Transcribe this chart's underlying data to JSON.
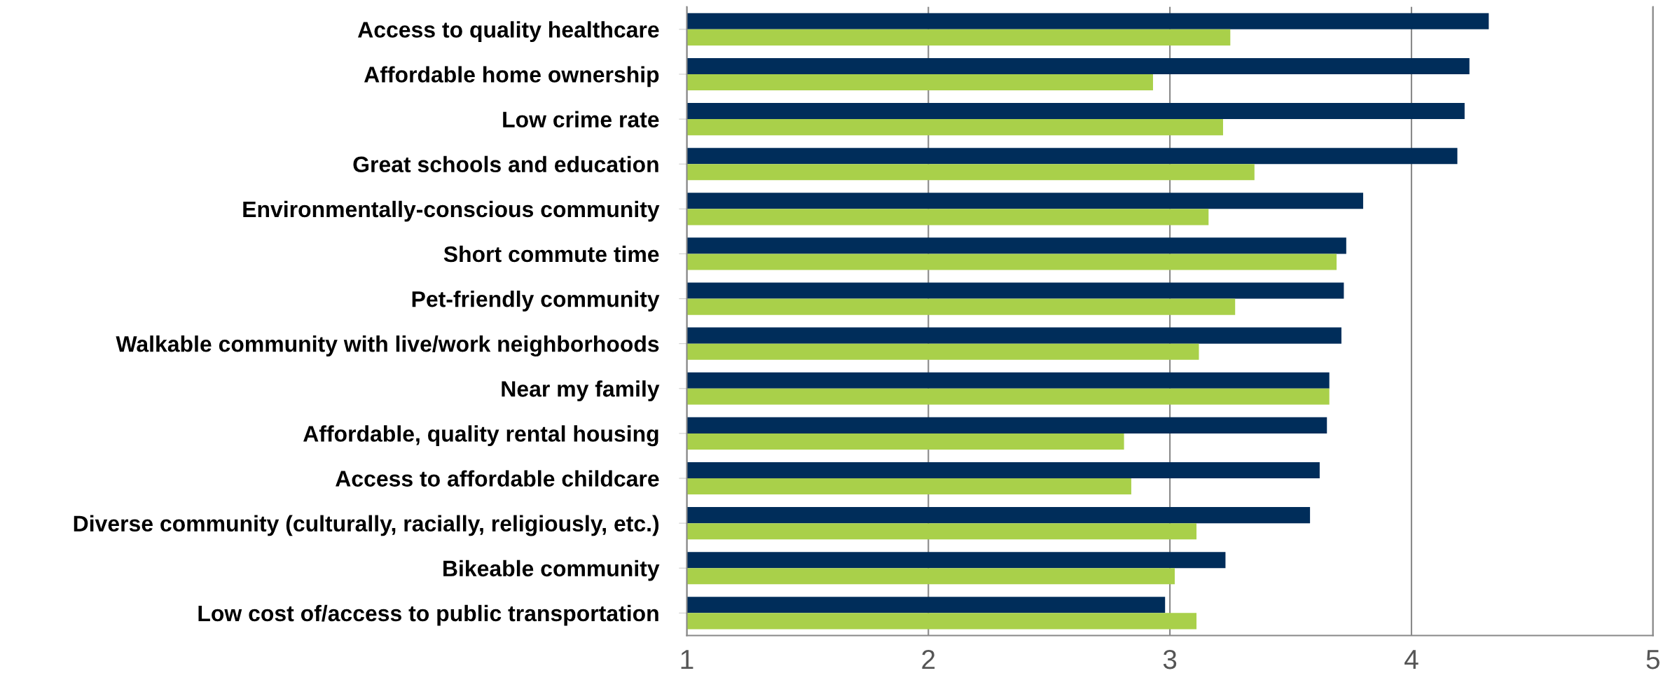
{
  "chart_data": {
    "type": "bar",
    "orientation": "horizontal",
    "categories": [
      "Access to quality healthcare",
      "Affordable home ownership",
      "Low crime rate",
      "Great schools and education",
      "Environmentally-conscious community",
      "Short commute time",
      "Pet-friendly community",
      "Walkable community with live/work neighborhoods",
      "Near my family",
      "Affordable, quality rental housing",
      "Access to affordable childcare",
      "Diverse community (culturally, racially, religiously, etc.)",
      "Bikeable community",
      "Low cost of/access to public transportation"
    ],
    "series": [
      {
        "color": "#002d5a",
        "values": [
          4.32,
          4.24,
          4.22,
          4.19,
          3.8,
          3.73,
          3.72,
          3.71,
          3.66,
          3.65,
          3.62,
          3.58,
          3.23,
          2.98
        ]
      },
      {
        "color": "#a9d04a",
        "values": [
          3.25,
          2.93,
          3.22,
          3.35,
          3.16,
          3.69,
          3.27,
          3.12,
          3.66,
          2.81,
          2.84,
          3.11,
          3.02,
          3.11
        ]
      }
    ],
    "xlim": [
      1,
      5
    ],
    "xticks": [
      1,
      2,
      3,
      4,
      5
    ],
    "grid": "x"
  }
}
